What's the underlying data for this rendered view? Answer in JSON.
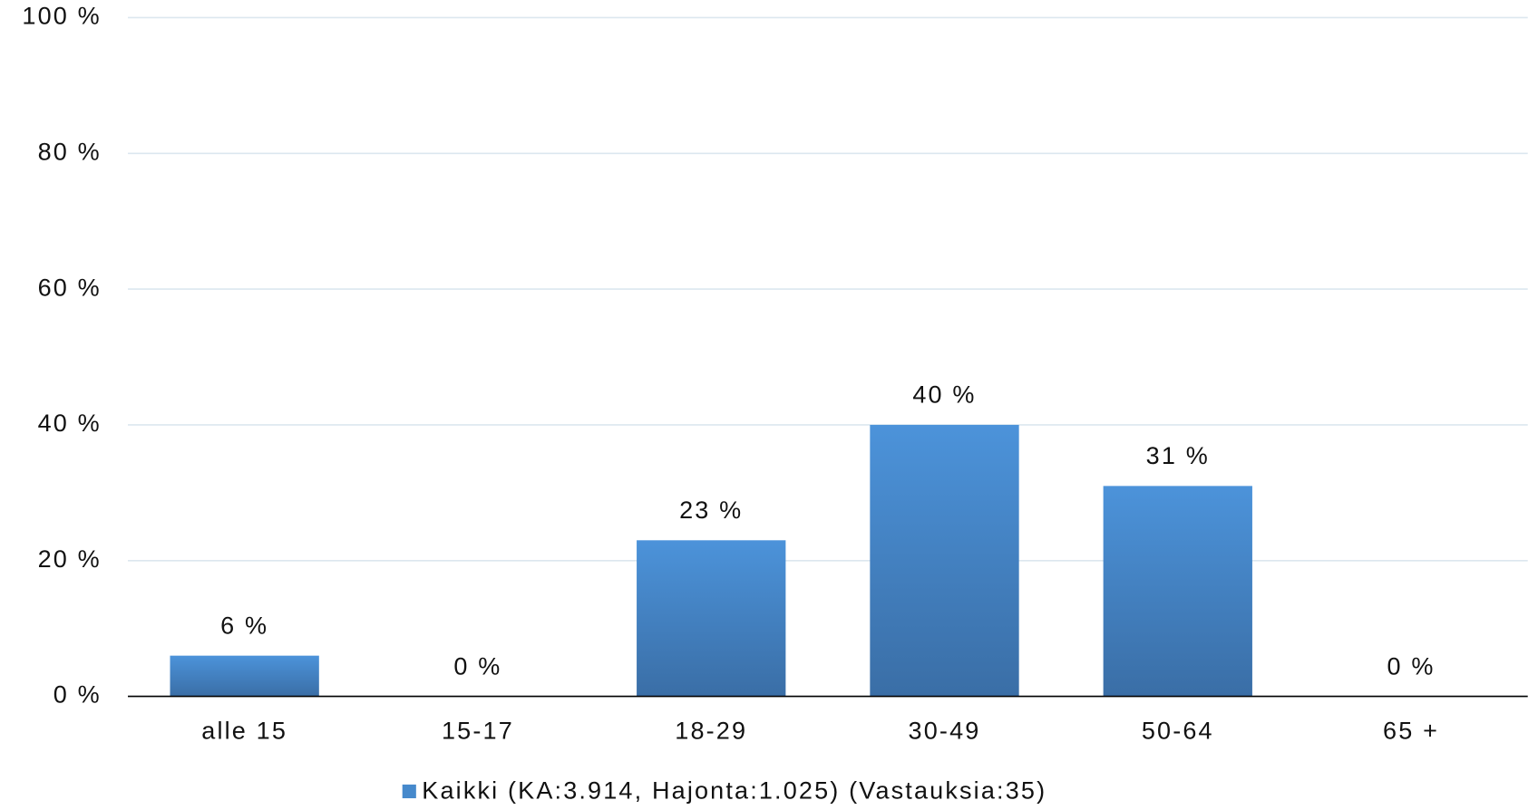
{
  "chart_data": {
    "type": "bar",
    "categories": [
      "alle 15",
      "15-17",
      "18-29",
      "30-49",
      "50-64",
      "65 +"
    ],
    "series": [
      {
        "name": "Kaikki (KA:3.914, Hajonta:1.025) (Vastauksia:35)",
        "color": "#4689cc",
        "values": [
          6,
          0,
          23,
          40,
          31,
          0
        ],
        "value_labels": [
          "6 %",
          "0 %",
          "23 %",
          "40 %",
          "31 %",
          "0 %"
        ]
      }
    ],
    "ylim": [
      0,
      100
    ],
    "yticks": [
      {
        "value": 0,
        "label": "0 %"
      },
      {
        "value": 20,
        "label": "20 %"
      },
      {
        "value": 40,
        "label": "40 %"
      },
      {
        "value": 60,
        "label": "60 %"
      },
      {
        "value": 80,
        "label": "80 %"
      },
      {
        "value": 100,
        "label": "100 %"
      }
    ],
    "grid": true,
    "legend": "bottom"
  }
}
